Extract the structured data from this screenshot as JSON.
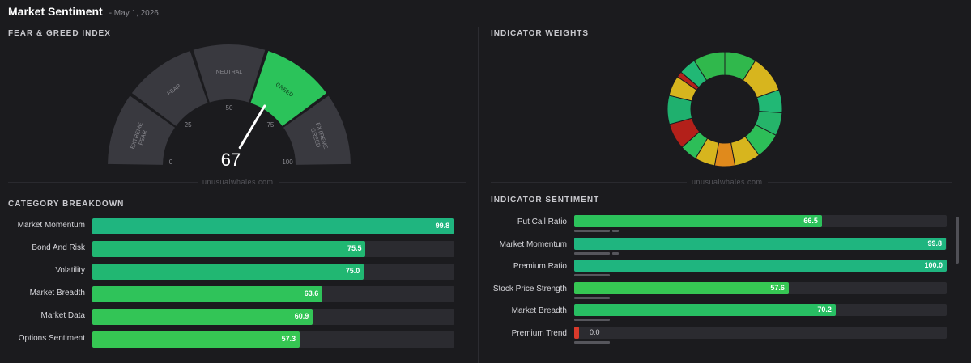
{
  "header": {
    "title": "Market Sentiment",
    "date": "- May 1, 2026"
  },
  "fear_greed": {
    "section_title": "FEAR & GREED INDEX",
    "value": "67",
    "segments": [
      "EXTREME FEAR",
      "FEAR",
      "NEUTRAL",
      "GREED",
      "EXTREME GREED"
    ],
    "ticks": [
      "0",
      "25",
      "50",
      "75",
      "100"
    ],
    "active_segment": "GREED",
    "watermark": "unusualwhales.com"
  },
  "weights": {
    "section_title": "INDICATOR WEIGHTS",
    "watermark": "unusualwhales.com"
  },
  "category_breakdown": {
    "section_title": "CATEGORY BREAKDOWN",
    "rows": [
      {
        "label": "Market Momentum",
        "value": "99.8",
        "color": "#1fb57f"
      },
      {
        "label": "Bond And Risk",
        "value": "75.5",
        "color": "#21b772"
      },
      {
        "label": "Volatility",
        "value": "75.0",
        "color": "#21b772"
      },
      {
        "label": "Market Breadth",
        "value": "63.6",
        "color": "#2fc35a"
      },
      {
        "label": "Market Data",
        "value": "60.9",
        "color": "#33c556"
      },
      {
        "label": "Options Sentiment",
        "value": "57.3",
        "color": "#36c753"
      }
    ]
  },
  "indicator_sentiment": {
    "section_title": "INDICATOR SENTIMENT",
    "rows": [
      {
        "label": "Put Call Ratio",
        "value": "66.5",
        "color": "#2cc25b"
      },
      {
        "label": "Market Momentum",
        "value": "99.8",
        "color": "#1fb57f"
      },
      {
        "label": "Premium Ratio",
        "value": "100.0",
        "color": "#1fb57f"
      },
      {
        "label": "Stock Price Strength",
        "value": "57.6",
        "color": "#36c753"
      },
      {
        "label": "Market Breadth",
        "value": "70.2",
        "color": "#28bf63"
      },
      {
        "label": "Premium Trend",
        "value": "0.0",
        "color": "#d93a2b"
      }
    ]
  }
}
